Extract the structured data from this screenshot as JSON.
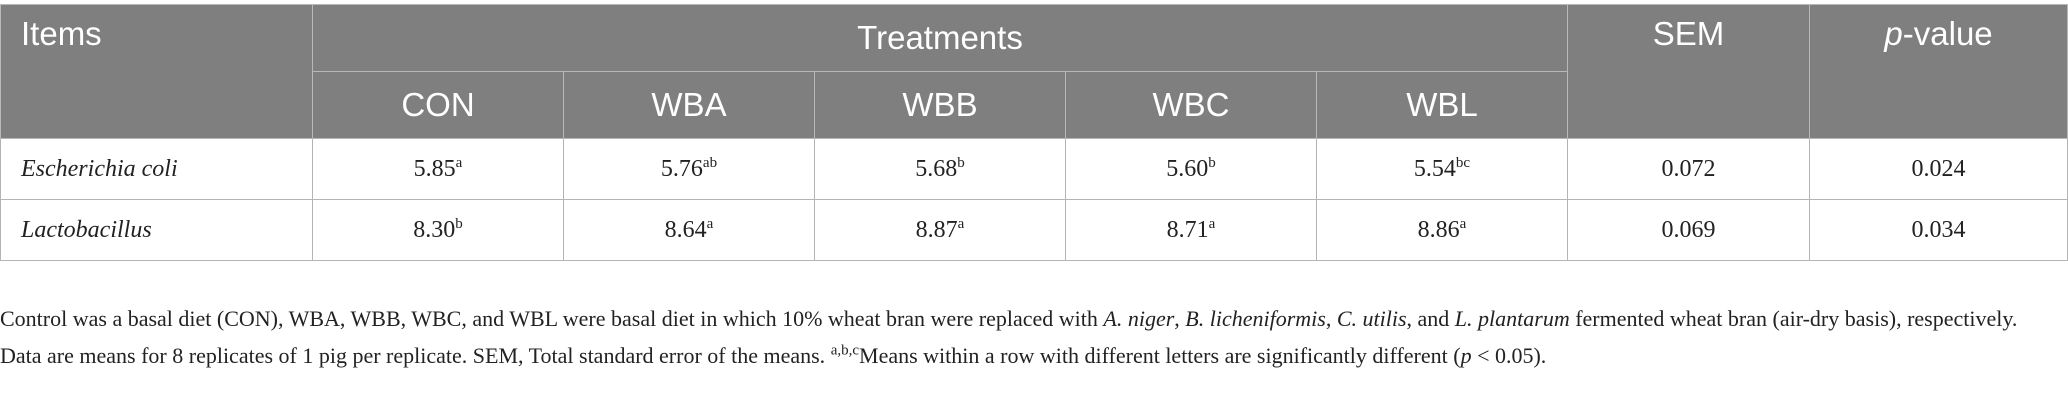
{
  "header": {
    "items": "Items",
    "treatments": "Treatments",
    "sem": "SEM",
    "pvalue_italic": "p",
    "pvalue_rest": "-value",
    "groups": [
      "CON",
      "WBA",
      "WBB",
      "WBC",
      "WBL"
    ]
  },
  "rows": [
    {
      "label": "Escherichia coli",
      "values": [
        {
          "v": "5.85",
          "s": "a"
        },
        {
          "v": "5.76",
          "s": "ab"
        },
        {
          "v": "5.68",
          "s": "b"
        },
        {
          "v": "5.60",
          "s": "b"
        },
        {
          "v": "5.54",
          "s": "bc"
        }
      ],
      "sem": "0.072",
      "p": "0.024"
    },
    {
      "label": "Lactobacillus",
      "values": [
        {
          "v": "8.30",
          "s": "b"
        },
        {
          "v": "8.64",
          "s": "a"
        },
        {
          "v": "8.87",
          "s": "a"
        },
        {
          "v": "8.71",
          "s": "a"
        },
        {
          "v": "8.86",
          "s": "a"
        }
      ],
      "sem": "0.069",
      "p": "0.034"
    }
  ],
  "footnote": {
    "t1": "Control was a basal diet (CON), WBA, WBB, WBC, and WBL were basal diet in which 10% wheat bran were replaced with ",
    "sp1": "A. niger",
    "t2": ", ",
    "sp2": "B. licheniformis",
    "t3": ", ",
    "sp3": "C. utilis",
    "t4": ", and ",
    "sp4": "L. plantarum",
    "t5": " fermented wheat bran (air-dry basis), respectively. Data are means for 8 replicates of 1 pig per replicate. SEM, Total standard error of the means. ",
    "sup": "a,b,c",
    "t6": "Means within a row with different letters are significantly different (",
    "p": "p",
    "t7": " < 0.05)."
  }
}
